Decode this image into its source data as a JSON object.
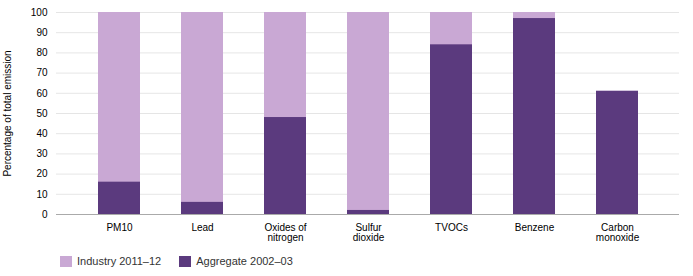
{
  "chart_data": {
    "type": "bar",
    "categories": [
      "PM10",
      "Lead",
      "Oxides of\nnitrogen",
      "Sulfur\ndioxide",
      "TVOCs",
      "Benzene",
      "Carbon\nmonoxide"
    ],
    "series": [
      {
        "name": "Industry 2011–12",
        "color": "#c9a8d4",
        "values": [
          100,
          100,
          100,
          100,
          100,
          100,
          61
        ]
      },
      {
        "name": "Aggregate 2002–03",
        "color": "#5b3a7e",
        "values": [
          16,
          6,
          48,
          2,
          84,
          97,
          61
        ]
      }
    ],
    "ylabel": "Percentage of total emission",
    "ylim": [
      0,
      100
    ],
    "yticks": [
      0,
      10,
      20,
      30,
      40,
      50,
      60,
      70,
      80,
      90,
      100
    ],
    "grid": true,
    "legend": "bottom",
    "stacked": false
  }
}
